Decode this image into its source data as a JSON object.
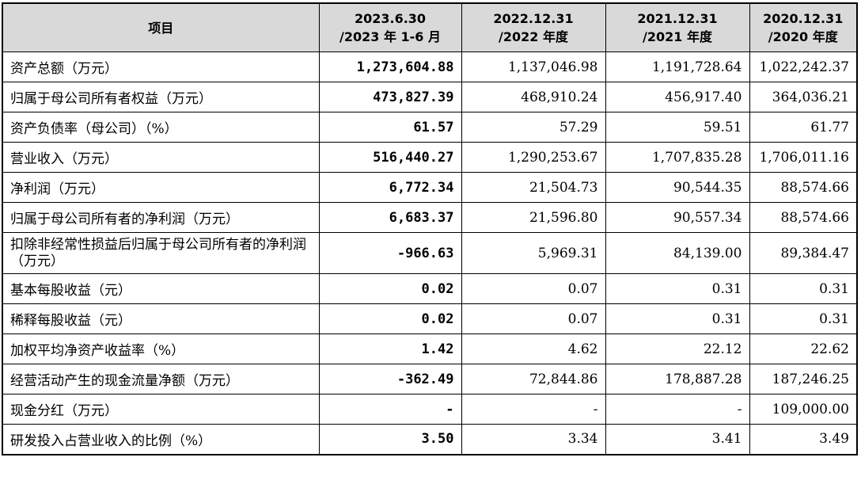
{
  "table": {
    "headers": [
      {
        "line1": "项目",
        "line2": ""
      },
      {
        "line1": "2023.6.30",
        "line2": "/2023 年 1-6 月"
      },
      {
        "line1": "2022.12.31",
        "line2": "/2022 年度"
      },
      {
        "line1": "2021.12.31",
        "line2": "/2021 年度"
      },
      {
        "line1": "2020.12.31",
        "line2": "/2020 年度"
      }
    ],
    "rows": [
      {
        "item": "资产总额（万元）",
        "v2023": "1,273,604.88",
        "v2022": "1,137,046.98",
        "v2021": "1,191,728.64",
        "v2020": "1,022,242.37"
      },
      {
        "item": "归属于母公司所有者权益（万元）",
        "v2023": "473,827.39",
        "v2022": "468,910.24",
        "v2021": "456,917.40",
        "v2020": "364,036.21"
      },
      {
        "item": "资产负债率（母公司）（%）",
        "v2023": "61.57",
        "v2022": "57.29",
        "v2021": "59.51",
        "v2020": "61.77"
      },
      {
        "item": "营业收入（万元）",
        "v2023": "516,440.27",
        "v2022": "1,290,253.67",
        "v2021": "1,707,835.28",
        "v2020": "1,706,011.16"
      },
      {
        "item": "净利润（万元）",
        "v2023": "6,772.34",
        "v2022": "21,504.73",
        "v2021": "90,544.35",
        "v2020": "88,574.66"
      },
      {
        "item": "归属于母公司所有者的净利润（万元）",
        "v2023": "6,683.37",
        "v2022": "21,596.80",
        "v2021": "90,557.34",
        "v2020": "88,574.66"
      },
      {
        "item": "扣除非经常性损益后归属于母公司所有者的净利润（万元）",
        "v2023": "-966.63",
        "v2022": "5,969.31",
        "v2021": "84,139.00",
        "v2020": "89,384.47"
      },
      {
        "item": "基本每股收益（元）",
        "v2023": "0.02",
        "v2022": "0.07",
        "v2021": "0.31",
        "v2020": "0.31"
      },
      {
        "item": "稀释每股收益（元）",
        "v2023": "0.02",
        "v2022": "0.07",
        "v2021": "0.31",
        "v2020": "0.31"
      },
      {
        "item": "加权平均净资产收益率（%）",
        "v2023": "1.42",
        "v2022": "4.62",
        "v2021": "22.12",
        "v2020": "22.62"
      },
      {
        "item": "经营活动产生的现金流量净额（万元）",
        "v2023": "-362.49",
        "v2022": "72,844.86",
        "v2021": "178,887.28",
        "v2020": "187,246.25"
      },
      {
        "item": "现金分红（万元）",
        "v2023": "-",
        "v2022": "-",
        "v2021": "-",
        "v2020": "109,000.00"
      },
      {
        "item": "研发投入占营业收入的比例（%）",
        "v2023": "3.50",
        "v2022": "3.34",
        "v2021": "3.41",
        "v2020": "3.49"
      }
    ]
  }
}
